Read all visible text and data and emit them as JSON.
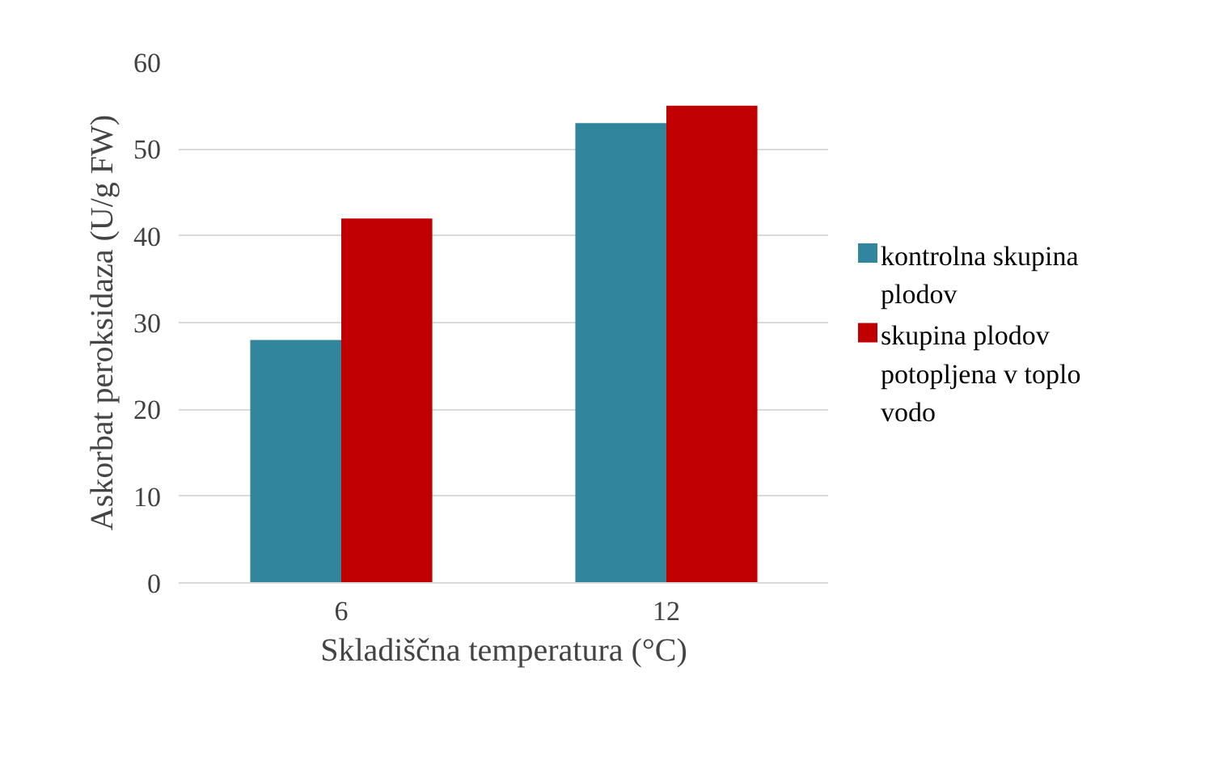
{
  "chart_data": {
    "type": "bar",
    "xlabel": "Skladiščna temperatura (°C)",
    "ylabel": "Askorbat peroksidaza (U/g FW)",
    "categories": [
      "6",
      "12"
    ],
    "series": [
      {
        "name": "kontrolna skupina plodov",
        "color": "#31859c",
        "values": [
          28,
          53
        ]
      },
      {
        "name": "skupina plodov potopljena v toplo vodo",
        "color": "#c00000",
        "values": [
          42,
          55
        ]
      }
    ],
    "ylim": [
      0,
      60
    ],
    "yticks": [
      0,
      10,
      20,
      30,
      40,
      50,
      60
    ],
    "grid": "y",
    "legend": "right"
  }
}
